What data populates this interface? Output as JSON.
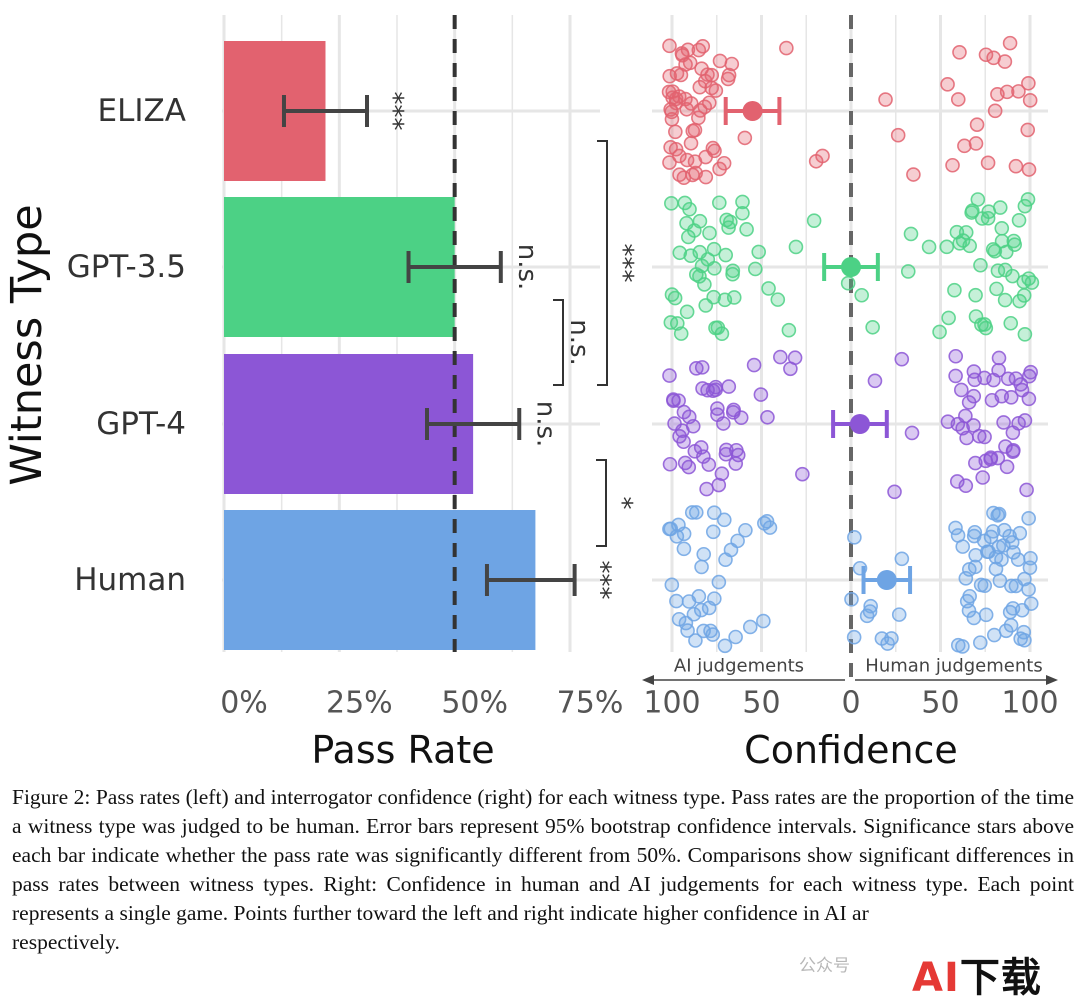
{
  "chart_data": [
    {
      "type": "bar",
      "orientation": "horizontal",
      "categories": [
        "ELIZA",
        "GPT-3.5",
        "GPT-4",
        "Human"
      ],
      "values": [
        0.22,
        0.5,
        0.54,
        0.675
      ],
      "ci_low": [
        0.13,
        0.4,
        0.44,
        0.57
      ],
      "ci_high": [
        0.31,
        0.6,
        0.64,
        0.76
      ],
      "significance": [
        "***",
        "n.s.",
        "n.s.",
        "***"
      ],
      "colors": [
        "#e2626f",
        "#4cd185",
        "#8c56d6",
        "#6ea4e4"
      ],
      "reference_line": 0.5,
      "xlabel": "Pass Rate",
      "ylabel": "Witness Type",
      "xlim": [
        0,
        0.8
      ],
      "xticks": [
        "0%",
        "25%",
        "50%",
        "75%"
      ],
      "grid": true,
      "comparisons": [
        {
          "from": "ELIZA",
          "to": "GPT-4",
          "label": "***"
        },
        {
          "from": "GPT-3.5",
          "to": "GPT-4",
          "label": "n.s."
        },
        {
          "from": "GPT-4",
          "to": "Human",
          "label": "*"
        }
      ]
    },
    {
      "type": "scatter",
      "categories": [
        "ELIZA",
        "GPT-3.5",
        "GPT-4",
        "Human"
      ],
      "means": [
        -55,
        0,
        5,
        20
      ],
      "ci_low": [
        -70,
        -15,
        -10,
        7
      ],
      "ci_high": [
        -40,
        15,
        20,
        33
      ],
      "xlabel": "Confidence",
      "xlim": [
        -100,
        100
      ],
      "xticks": [
        "100",
        "50",
        "0",
        "50",
        "100"
      ],
      "left_arrow_label": "AI judgements",
      "right_arrow_label": "Human judgements",
      "reference_line": 0,
      "points": [
        {
          "category": "ELIZA",
          "values": [
            -100,
            -100,
            -100,
            -100,
            -98,
            -97,
            -95,
            -95,
            -93,
            -92,
            -90,
            -90,
            -88,
            -85,
            -85,
            -82,
            -80,
            -80,
            -78,
            -76,
            -75,
            -72,
            -70,
            -68,
            -100,
            -99,
            -96,
            -94,
            -91,
            -89,
            -86,
            -84,
            -81,
            -79,
            -77,
            -74,
            -100,
            -97,
            -93,
            -88,
            -83,
            -99,
            -95,
            -90,
            -86,
            -100,
            -98,
            -92,
            -87,
            -82,
            -75,
            -70,
            -65,
            -60,
            -20,
            -15,
            -35,
            -100,
            -96,
            -91,
            -85,
            -100,
            95,
            100,
            85,
            90,
            75,
            80,
            60,
            65,
            70,
            100,
            98,
            88,
            78,
            62,
            55,
            72,
            82,
            92,
            100,
            58,
            80,
            25,
            35,
            18
          ]
        },
        {
          "category": "GPT-3.5",
          "values": [
            -100,
            -98,
            -95,
            -92,
            -90,
            -88,
            -85,
            -82,
            -80,
            -78,
            -75,
            -72,
            -70,
            -68,
            -65,
            -60,
            -55,
            -50,
            -45,
            -40,
            -100,
            -96,
            -93,
            -89,
            -86,
            -83,
            -79,
            -76,
            -73,
            -69,
            -66,
            -62,
            -58,
            -100,
            -97,
            -94,
            -91,
            -87,
            -84,
            -81,
            -77,
            -74,
            -71,
            -67,
            -64,
            -35,
            -30,
            -20,
            -3,
            5,
            100,
            98,
            95,
            92,
            90,
            88,
            85,
            82,
            80,
            78,
            75,
            72,
            70,
            68,
            65,
            60,
            55,
            50,
            100,
            97,
            94,
            91,
            87,
            84,
            81,
            77,
            74,
            71,
            67,
            64,
            58,
            53,
            100,
            96,
            93,
            89,
            86,
            83,
            79,
            76,
            73,
            69,
            66,
            62,
            35,
            32,
            12,
            45
          ]
        },
        {
          "category": "GPT-4",
          "values": [
            -100,
            -98,
            -95,
            -92,
            -90,
            -88,
            -85,
            -82,
            -80,
            -78,
            -75,
            -72,
            -70,
            -68,
            -65,
            -62,
            -60,
            -55,
            -50,
            -45,
            -100,
            -97,
            -94,
            -91,
            -87,
            -84,
            -81,
            -77,
            -74,
            -71,
            -67,
            -64,
            -100,
            -96,
            -93,
            -89,
            -86,
            -83,
            -79,
            -76,
            -73,
            -69,
            -66,
            -35,
            -30,
            -28,
            -40,
            15,
            25,
            30,
            35,
            100,
            98,
            95,
            92,
            90,
            88,
            85,
            82,
            80,
            78,
            75,
            72,
            70,
            68,
            65,
            62,
            60,
            57,
            100,
            97,
            94,
            91,
            87,
            84,
            81,
            77,
            74,
            71,
            67,
            64,
            100,
            96,
            93,
            89,
            86,
            83,
            79,
            76,
            73,
            69,
            66,
            63,
            60,
            58,
            61,
            55
          ]
        },
        {
          "category": "Human",
          "values": [
            -100,
            -98,
            -95,
            -92,
            -90,
            -88,
            -85,
            -82,
            -80,
            -78,
            -75,
            -72,
            -70,
            -68,
            -65,
            -62,
            -60,
            -55,
            -50,
            -100,
            -97,
            -94,
            -91,
            -87,
            -84,
            -81,
            -77,
            -74,
            -71,
            -100,
            -96,
            -93,
            -89,
            -86,
            -83,
            -79,
            -76,
            -50,
            -48,
            -45,
            0,
            2,
            3,
            5,
            8,
            10,
            12,
            18,
            20,
            22,
            28,
            30,
            100,
            98,
            95,
            92,
            90,
            88,
            85,
            82,
            80,
            78,
            75,
            72,
            70,
            68,
            65,
            62,
            60,
            100,
            97,
            94,
            91,
            87,
            84,
            81,
            77,
            74,
            71,
            67,
            64,
            100,
            96,
            93,
            89,
            86,
            83,
            79,
            76,
            73,
            69,
            66,
            63,
            60,
            57,
            100,
            98,
            95,
            92,
            90,
            88,
            85,
            82,
            80,
            78,
            75,
            70,
            65
          ]
        }
      ]
    }
  ],
  "caption": "Figure 2: Pass rates (left) and interrogator confidence (right) for each witness type. Pass rates are the proportion of the time a witness type was judged to be human. Error bars represent 95% bootstrap confidence intervals. Significance stars above each bar indicate whether the pass rate was significantly different from 50%. Comparisons show significant differences in pass rates between witness types. Right: Confidence in human and AI judgements for each witness type. Each point represents a single game. Points further toward the left and right indicate higher confidence in AI ar",
  "caption_end": "respectively.",
  "watermark": {
    "a": "AI",
    "b": "下载"
  },
  "wechat_label": "公众号"
}
